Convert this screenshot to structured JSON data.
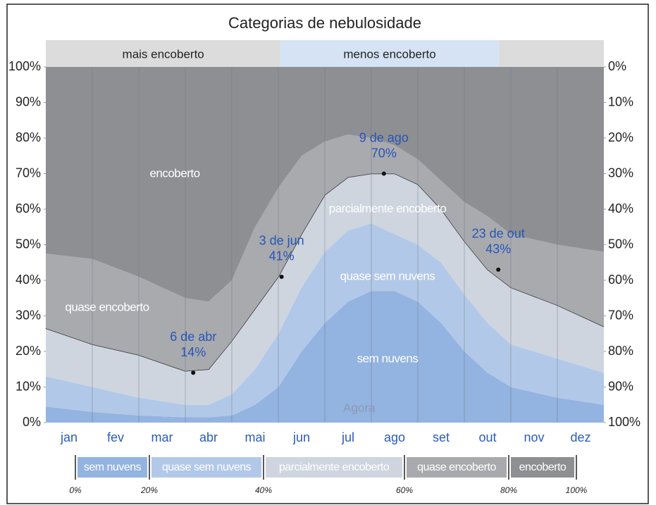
{
  "chart_data": {
    "type": "stacked_area",
    "title": "Categorias de nebulosidade",
    "x": [
      0,
      1,
      2,
      3,
      3.5,
      4,
      4.5,
      5,
      5.5,
      6,
      6.5,
      7,
      7.5,
      8,
      8.5,
      9,
      9.5,
      10,
      11,
      12
    ],
    "xlim": [
      0,
      12
    ],
    "categories": [
      "jan",
      "fev",
      "mar",
      "abr",
      "mai",
      "jun",
      "jul",
      "ago",
      "set",
      "out",
      "nov",
      "dez"
    ],
    "series": [
      {
        "name": "sem nuvens",
        "color": "#93b3e0",
        "values": [
          4.5,
          3,
          2,
          1.5,
          1.5,
          2,
          5,
          10,
          20,
          28,
          34,
          37,
          37,
          34,
          28,
          20,
          14,
          10,
          7,
          5
        ]
      },
      {
        "name": "quase sem nuvens",
        "color": "#b2c8e8",
        "values": [
          8.5,
          7,
          5,
          3.5,
          3.5,
          6,
          10,
          15,
          18,
          20,
          20,
          19,
          16,
          16,
          17,
          16,
          14,
          12,
          11,
          9
        ]
      },
      {
        "name": "parcialmente encoberto",
        "color": "#ced5df",
        "outline": true,
        "values": [
          13.5,
          12,
          12,
          9.5,
          10,
          15,
          17,
          16,
          15,
          16,
          15,
          14,
          17,
          17,
          15,
          15,
          15,
          16,
          15,
          13
        ]
      },
      {
        "name": "quase encoberto",
        "color": "#a8aaae",
        "values": [
          21,
          24,
          22,
          20.5,
          19,
          17,
          23,
          25,
          22,
          15,
          12,
          10,
          8,
          7,
          8,
          11,
          15,
          15,
          17,
          21
        ]
      },
      {
        "name": "encoberto",
        "color": "#8d8f93",
        "values": [
          52.5,
          54,
          59,
          65,
          66,
          60,
          45,
          34,
          25,
          21,
          19,
          20,
          22,
          26,
          32,
          38,
          42,
          47,
          50,
          52
        ]
      }
    ],
    "ylim": [
      0,
      100
    ],
    "yticks": [
      {
        "value": 0,
        "label": "0%"
      },
      {
        "value": 10,
        "label": "10%"
      },
      {
        "value": 20,
        "label": "20%"
      },
      {
        "value": 30,
        "label": "30%"
      },
      {
        "value": 40,
        "label": "40%"
      },
      {
        "value": 50,
        "label": "50%"
      },
      {
        "value": 60,
        "label": "60%"
      },
      {
        "value": 70,
        "label": "70%"
      },
      {
        "value": 80,
        "label": "80%"
      },
      {
        "value": 90,
        "label": "90%"
      },
      {
        "value": 100,
        "label": "100%"
      }
    ],
    "y2lim": [
      100,
      0
    ],
    "y2ticks": [
      {
        "value": 0,
        "label": "0%"
      },
      {
        "value": 10,
        "label": "10%"
      },
      {
        "value": 20,
        "label": "20%"
      },
      {
        "value": 30,
        "label": "30%"
      },
      {
        "value": 40,
        "label": "40%"
      },
      {
        "value": 50,
        "label": "50%"
      },
      {
        "value": 60,
        "label": "60%"
      },
      {
        "value": 70,
        "label": "70%"
      },
      {
        "value": 80,
        "label": "80%"
      },
      {
        "value": 90,
        "label": "90%"
      },
      {
        "value": 100,
        "label": "100%"
      }
    ],
    "bands": [
      {
        "label": "mais encoberto",
        "start": 0,
        "end": 5.05,
        "color": "#dcdcdc"
      },
      {
        "label": "menos encoberto",
        "start": 5.05,
        "end": 9.74,
        "color": "#d5e3f5"
      },
      {
        "start": 9.74,
        "end": 12,
        "color": "#dcdcdc"
      }
    ],
    "annotations": [
      {
        "label": "6 de abr",
        "x": 3.17,
        "value": 14,
        "value_label": "14%"
      },
      {
        "label": "3 de jun",
        "x": 5.07,
        "value": 41,
        "value_label": "41%"
      },
      {
        "label": "9 de ago",
        "x": 7.27,
        "value": 70,
        "value_label": "70%"
      },
      {
        "label": "23 de out",
        "x": 9.73,
        "value": 43,
        "value_label": "43%"
      }
    ],
    "note": {
      "text": "Agora",
      "x": 6.74,
      "value": 4
    },
    "legend_ticks": [
      {
        "value": 0,
        "label": "0%"
      },
      {
        "value": 20,
        "label": "20%"
      },
      {
        "value": 40,
        "label": "40%"
      },
      {
        "value": 60,
        "label": "60%"
      },
      {
        "value": 80,
        "label": "80%"
      },
      {
        "value": 100,
        "label": "100%"
      }
    ]
  }
}
